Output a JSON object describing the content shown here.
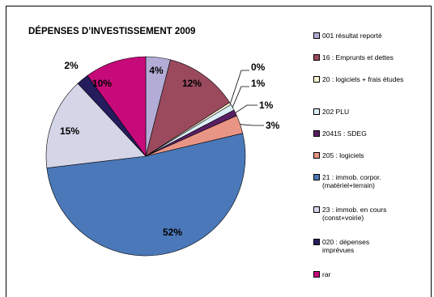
{
  "chart_data": {
    "type": "pie",
    "title": "DÉPENSES D’INVESTISSEMENT 2009",
    "slices": [
      {
        "name": "001 résultat reporté",
        "value": 4,
        "label": "4%",
        "color": "#b3acd6"
      },
      {
        "name": "16 : Emprunts et dettes",
        "value": 12,
        "label": "12%",
        "color": "#9b4a5e"
      },
      {
        "name": "20 : logiciels + frais études",
        "value": 0.4,
        "label": "0%",
        "color": "#f7f5d4"
      },
      {
        "name": "202 PLU",
        "value": 1,
        "label": "1%",
        "color": "#dceef8"
      },
      {
        "name": "20415 : SDEG",
        "value": 1,
        "label": "1%",
        "color": "#5a1e63"
      },
      {
        "name": "205 : logiciels",
        "value": 3,
        "label": "3%",
        "color": "#e99585"
      },
      {
        "name": "21 : immob. corpor. (matériel+terrain)",
        "value": 52,
        "label": "52%",
        "color": "#4b78b9"
      },
      {
        "name": "23 : immob. en cours (const+voirie)",
        "value": 15,
        "label": "15%",
        "color": "#d5d5e8"
      },
      {
        "name": "020 : dépenses imprévues",
        "value": 2,
        "label": "2%",
        "color": "#251c5e"
      },
      {
        "name": "rar",
        "value": 10,
        "label": "10%",
        "color": "#c70a79"
      }
    ],
    "legend_position": "right"
  }
}
